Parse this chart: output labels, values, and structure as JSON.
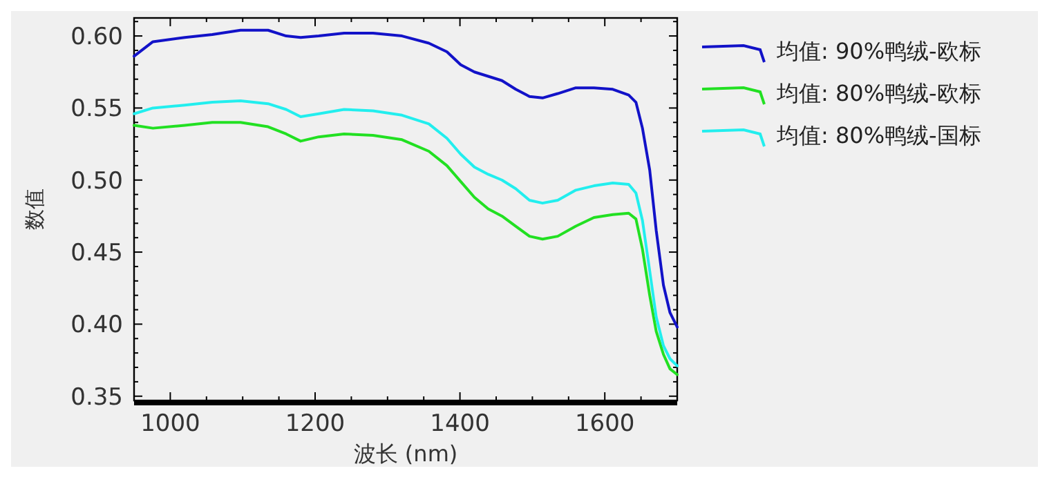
{
  "chart_data": {
    "type": "line",
    "xlabel": "波长 (nm)",
    "ylabel": "数值",
    "legend": "right",
    "grid": false,
    "line_style": "solid",
    "marker": "none",
    "xlim": [
      950,
      1700
    ],
    "ylim": [
      0.347,
      0.6125
    ],
    "xticks": [
      1000,
      {
        "value": 1050,
        "label": null
      },
      {
        "value": 1100,
        "label": null
      },
      {
        "value": 1150,
        "label": null
      },
      1200,
      {
        "value": 1250,
        "label": null
      },
      {
        "value": 1300,
        "label": null
      },
      {
        "value": 1350,
        "label": null
      },
      1400,
      {
        "value": 1450,
        "label": null
      },
      {
        "value": 1500,
        "label": null
      },
      {
        "value": 1550,
        "label": null
      },
      1600,
      {
        "value": 1650,
        "label": null
      }
    ],
    "yticks": [
      {
        "value": 0.35,
        "label": "0.35"
      },
      {
        "value": 0.36,
        "label": null
      },
      {
        "value": 0.37,
        "label": null
      },
      {
        "value": 0.38,
        "label": null
      },
      {
        "value": 0.39,
        "label": null
      },
      {
        "value": 0.4,
        "label": "0.40"
      },
      {
        "value": 0.41,
        "label": null
      },
      {
        "value": 0.42,
        "label": null
      },
      {
        "value": 0.43,
        "label": null
      },
      {
        "value": 0.44,
        "label": null
      },
      0.45,
      {
        "value": 0.46,
        "label": null
      },
      {
        "value": 0.47,
        "label": null
      },
      {
        "value": 0.48,
        "label": null
      },
      {
        "value": 0.49,
        "label": null
      },
      {
        "value": 0.5,
        "label": "0.50"
      },
      {
        "value": 0.51,
        "label": null
      },
      {
        "value": 0.52,
        "label": null
      },
      {
        "value": 0.53,
        "label": null
      },
      {
        "value": 0.54,
        "label": null
      },
      0.55,
      {
        "value": 0.56,
        "label": null
      },
      {
        "value": 0.57,
        "label": null
      },
      {
        "value": 0.58,
        "label": null
      },
      {
        "value": 0.59,
        "label": null
      },
      {
        "value": 0.6,
        "label": "0.60"
      },
      {
        "value": 0.61,
        "label": null
      }
    ],
    "x": [
      950,
      976,
      1020,
      1058,
      1097,
      1135,
      1160,
      1180,
      1205,
      1240,
      1280,
      1320,
      1357,
      1382,
      1401,
      1420,
      1439,
      1458,
      1477,
      1496,
      1514,
      1535,
      1560,
      1585,
      1611,
      1633,
      1643,
      1652,
      1662,
      1671,
      1681,
      1690,
      1700
    ],
    "series": [
      {
        "name": "均值: 90%鸭绒-欧标",
        "color": "#1212c8",
        "values": [
          0.586,
          0.596,
          0.599,
          0.601,
          0.604,
          0.604,
          0.6,
          0.599,
          0.6,
          0.602,
          0.602,
          0.6,
          0.595,
          0.589,
          0.58,
          0.575,
          0.572,
          0.569,
          0.563,
          0.558,
          0.557,
          0.56,
          0.564,
          0.564,
          0.563,
          0.559,
          0.554,
          0.536,
          0.507,
          0.465,
          0.427,
          0.408,
          0.398
        ]
      },
      {
        "name": "均值: 80%鸭绒-欧标",
        "color": "#22e022",
        "values": [
          0.538,
          0.536,
          0.538,
          0.54,
          0.54,
          0.537,
          0.532,
          0.527,
          0.53,
          0.532,
          0.531,
          0.528,
          0.52,
          0.51,
          0.499,
          0.488,
          0.48,
          0.475,
          0.468,
          0.461,
          0.459,
          0.461,
          0.468,
          0.474,
          0.476,
          0.477,
          0.473,
          0.452,
          0.42,
          0.395,
          0.379,
          0.369,
          0.365
        ]
      },
      {
        "name": "均值: 80%鸭绒-国标",
        "color": "#22eeee",
        "values": [
          0.546,
          0.55,
          0.552,
          0.554,
          0.555,
          0.553,
          0.549,
          0.544,
          0.546,
          0.549,
          0.548,
          0.545,
          0.539,
          0.529,
          0.518,
          0.509,
          0.504,
          0.5,
          0.494,
          0.486,
          0.484,
          0.486,
          0.493,
          0.496,
          0.498,
          0.497,
          0.491,
          0.472,
          0.437,
          0.405,
          0.385,
          0.376,
          0.371
        ]
      }
    ]
  }
}
